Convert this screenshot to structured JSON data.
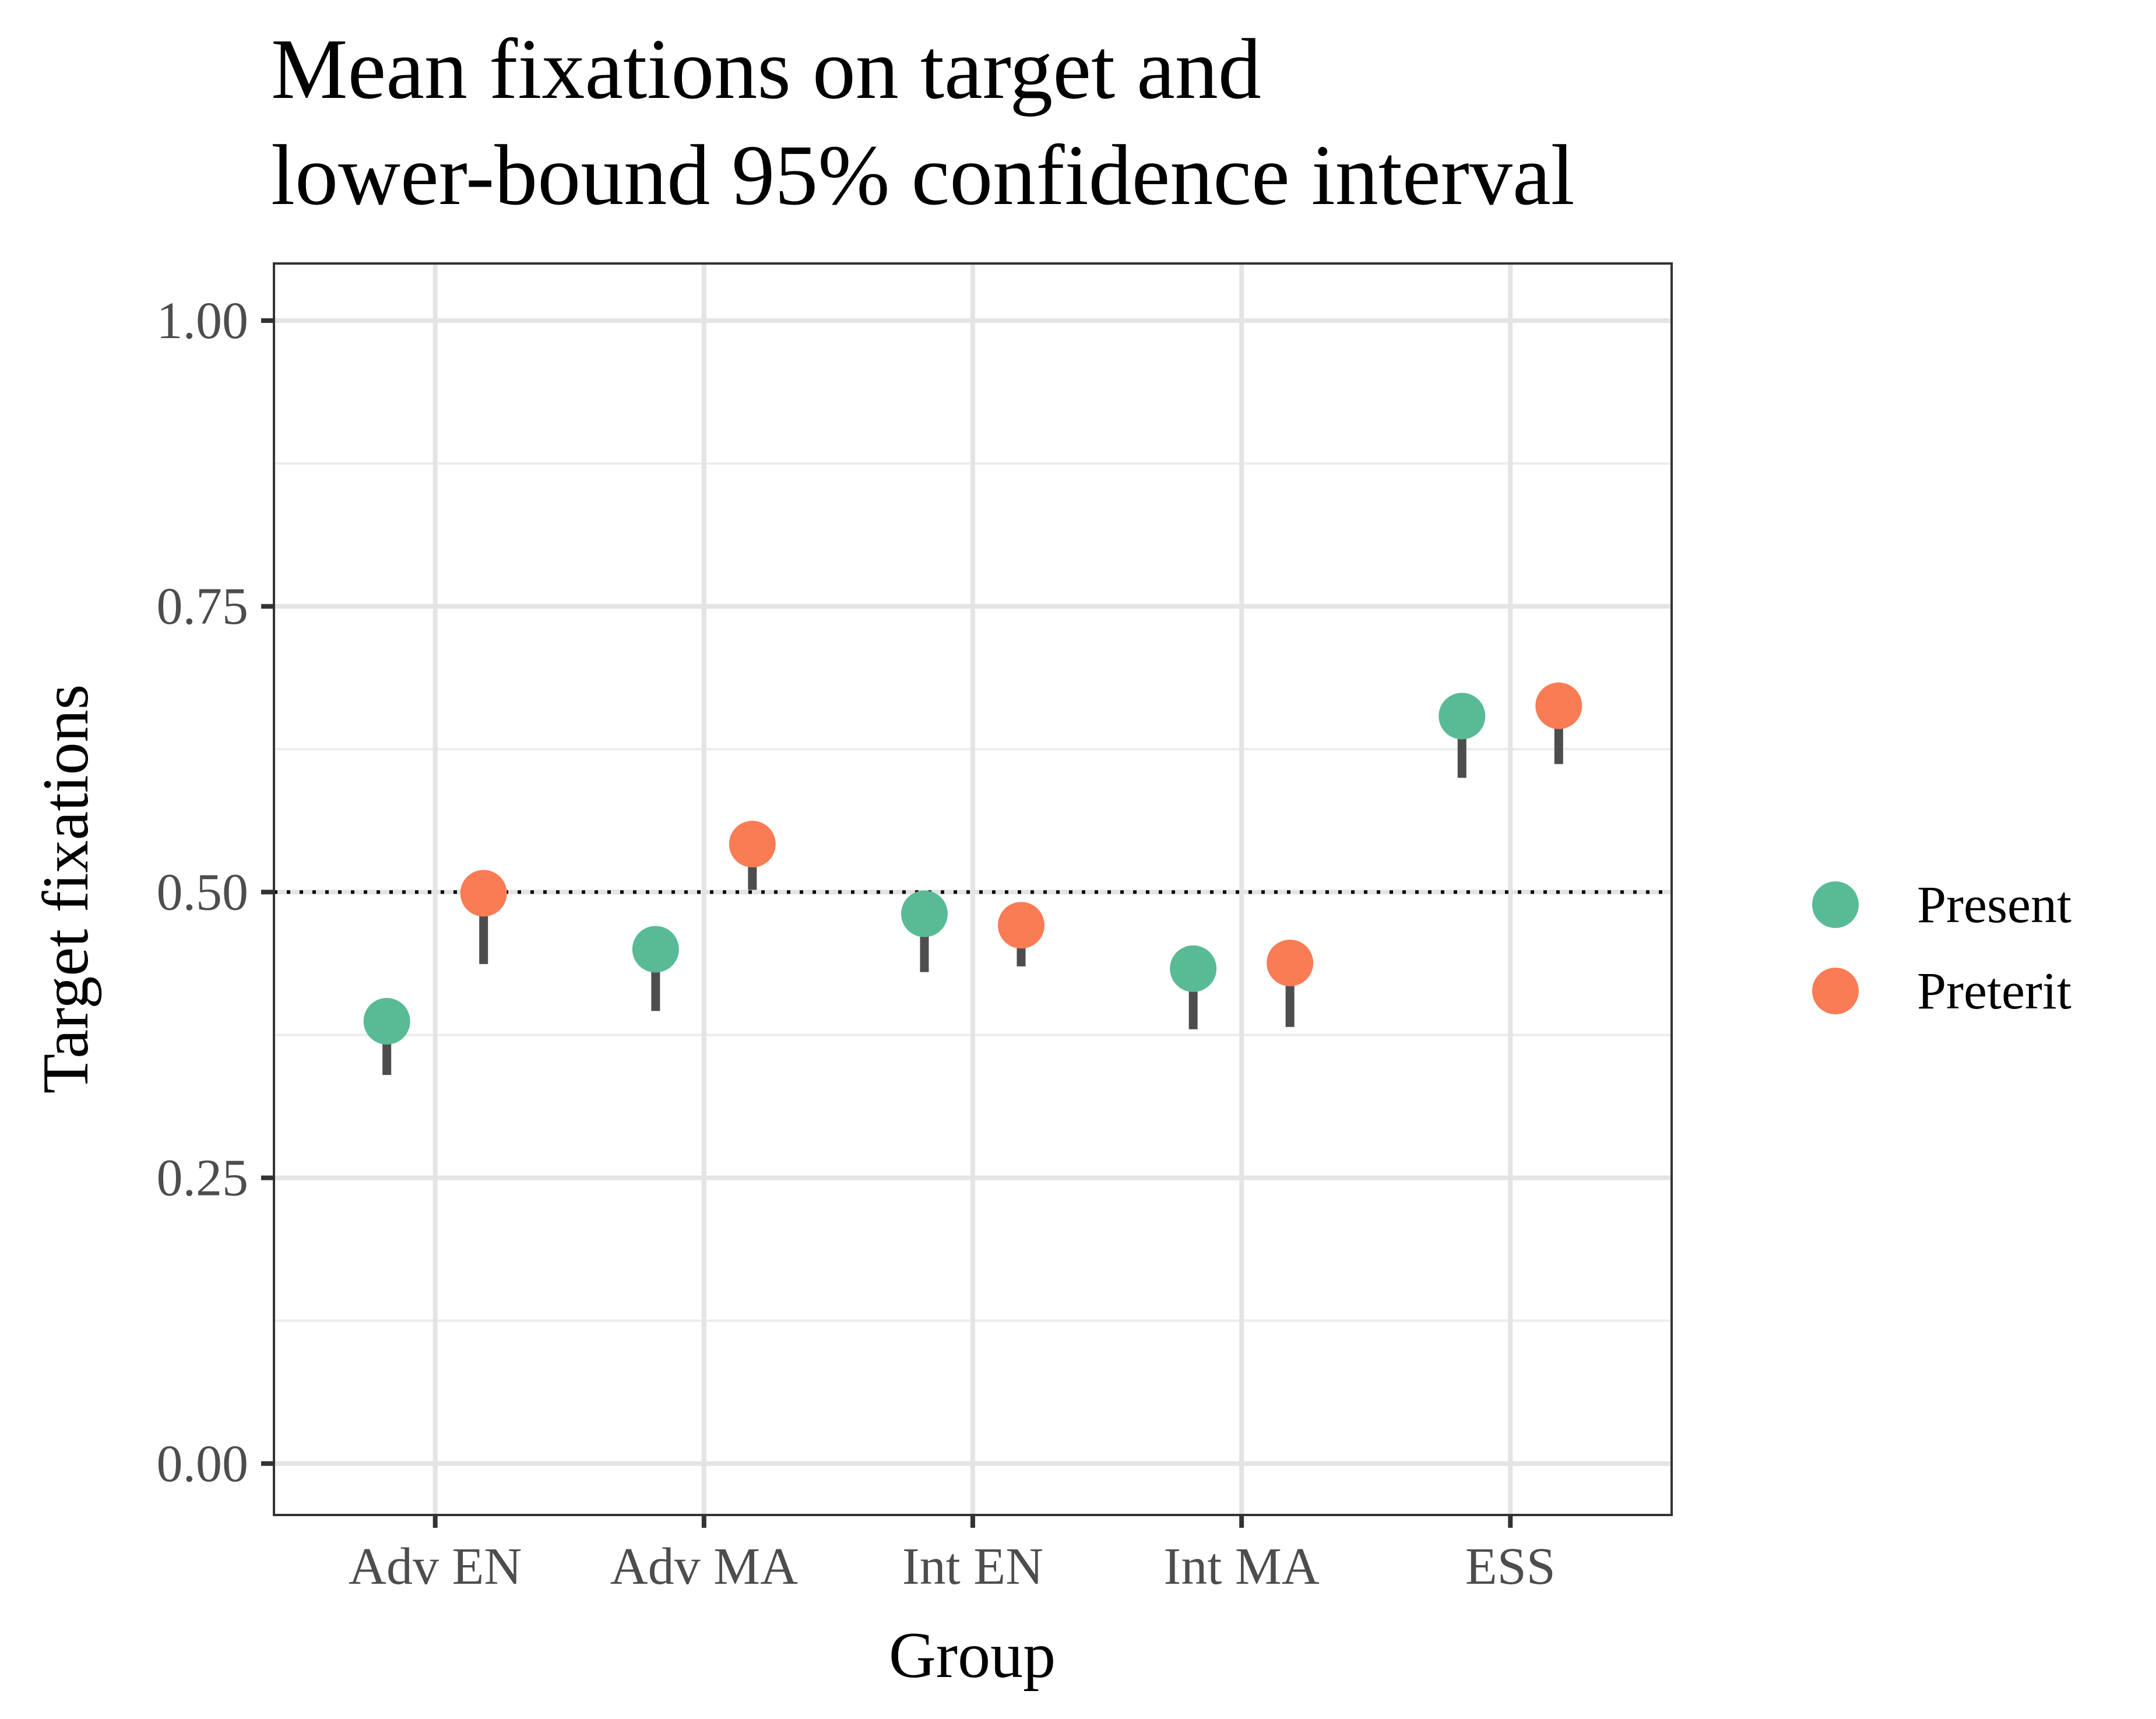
{
  "chart_data": {
    "type": "scatter",
    "title": "Mean fixations on target and",
    "subtitle": "lower-bound 95% confidence interval",
    "xlabel": "Group",
    "ylabel": "Target fixations",
    "categories": [
      "Adv EN",
      "Adv MA",
      "Int EN",
      "Int MA",
      "ESS"
    ],
    "ylim": [
      -0.045,
      1.05
    ],
    "yticks": [
      0.0,
      0.25,
      0.5,
      0.75,
      1.0
    ],
    "yticklabels": [
      "0.00",
      "0.25",
      "0.50",
      "0.75",
      "1.00"
    ],
    "reference_line": 0.5,
    "grid": true,
    "legend_position": "right",
    "series": [
      {
        "name": "Present",
        "color": "#59BB95",
        "values": [
          0.387,
          0.45,
          0.481,
          0.433,
          0.654
        ],
        "lower_ci": [
          0.34,
          0.396,
          0.43,
          0.38,
          0.6
        ]
      },
      {
        "name": "Preterit",
        "color": "#F97C55",
        "values": [
          0.499,
          0.542,
          0.471,
          0.438,
          0.663
        ],
        "lower_ci": [
          0.437,
          0.502,
          0.435,
          0.382,
          0.612
        ]
      }
    ]
  }
}
